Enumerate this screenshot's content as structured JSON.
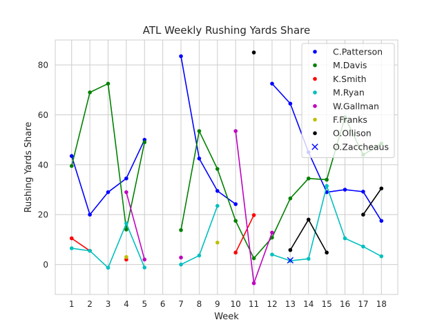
{
  "chart_data": {
    "type": "line",
    "title": "ATL Weekly Rushing Yards Share",
    "xlabel": "Week",
    "ylabel": "Rushing Yards Share",
    "xlim": [
      0.1,
      18.9
    ],
    "ylim": [
      -12,
      90
    ],
    "xticks": [
      1,
      2,
      3,
      4,
      5,
      6,
      7,
      8,
      9,
      10,
      11,
      12,
      13,
      14,
      15,
      16,
      17,
      18
    ],
    "yticks": [
      0,
      20,
      40,
      60,
      80
    ],
    "grid": true,
    "legend_position": "top-right",
    "series": [
      {
        "name": "C.Patterson",
        "color": "#0000ff",
        "marker": "dot",
        "points": [
          [
            1,
            43.5
          ],
          [
            2,
            20
          ],
          [
            3,
            29
          ],
          [
            4,
            34.5
          ],
          [
            5,
            50
          ],
          [
            7,
            83.5
          ],
          [
            8,
            42.5
          ],
          [
            9,
            29.5
          ],
          [
            10,
            24.2
          ],
          [
            12,
            72.5
          ],
          [
            13,
            64.5
          ],
          [
            14,
            45
          ],
          [
            15,
            29
          ],
          [
            16,
            30
          ],
          [
            17,
            29.2
          ],
          [
            18,
            17.5
          ]
        ]
      },
      {
        "name": "M.Davis",
        "color": "#008000",
        "marker": "dot",
        "points": [
          [
            1,
            39.5
          ],
          [
            2,
            69
          ],
          [
            3,
            72.5
          ],
          [
            4,
            14
          ],
          [
            5,
            49
          ],
          [
            7,
            13.8
          ],
          [
            8,
            53.5
          ],
          [
            9,
            38.3
          ],
          [
            10,
            17.5
          ],
          [
            11,
            2.5
          ],
          [
            12,
            10.8
          ],
          [
            13,
            26.5
          ],
          [
            14,
            34.5
          ],
          [
            15,
            34
          ],
          [
            16,
            59
          ],
          [
            17,
            44
          ],
          [
            18,
            48.5
          ]
        ]
      },
      {
        "name": "K.Smith",
        "color": "#ff0000",
        "marker": "dot",
        "points": [
          [
            1,
            10.5
          ],
          [
            2,
            5.5
          ],
          [
            4,
            2
          ],
          [
            10,
            4.8
          ],
          [
            11,
            19.8
          ]
        ]
      },
      {
        "name": "M.Ryan",
        "color": "#00bfbf",
        "marker": "dot",
        "points": [
          [
            1,
            6.5
          ],
          [
            2,
            5.5
          ],
          [
            3,
            -1.3
          ],
          [
            4,
            16.5
          ],
          [
            5,
            -1.2
          ],
          [
            7,
            0
          ],
          [
            8,
            3.6
          ],
          [
            9,
            23.5
          ],
          [
            12,
            4
          ],
          [
            13,
            1.5
          ],
          [
            14,
            2.3
          ],
          [
            15,
            31.5
          ],
          [
            16,
            10.5
          ],
          [
            17,
            7.2
          ],
          [
            18,
            3.3
          ]
        ]
      },
      {
        "name": "W.Gallman",
        "color": "#bf00bf",
        "marker": "dot",
        "points": [
          [
            4,
            29
          ],
          [
            5,
            2
          ],
          [
            7,
            2.8
          ],
          [
            10,
            53.5
          ],
          [
            11,
            -7.5
          ],
          [
            12,
            12.8
          ]
        ]
      },
      {
        "name": "F.Franks",
        "color": "#bfbf00",
        "marker": "dot",
        "points": [
          [
            4,
            3
          ],
          [
            9,
            8.8
          ]
        ]
      },
      {
        "name": "O.Ollison",
        "color": "#000000",
        "marker": "dot",
        "points": [
          [
            11,
            85
          ],
          [
            13,
            5.8
          ],
          [
            14,
            18
          ],
          [
            15,
            4.8
          ],
          [
            17,
            20
          ],
          [
            18,
            30.5
          ]
        ]
      },
      {
        "name": "O.Zaccheaus",
        "color": "#0000ff",
        "marker": "x",
        "points": [
          [
            13,
            1.7
          ]
        ]
      }
    ]
  }
}
